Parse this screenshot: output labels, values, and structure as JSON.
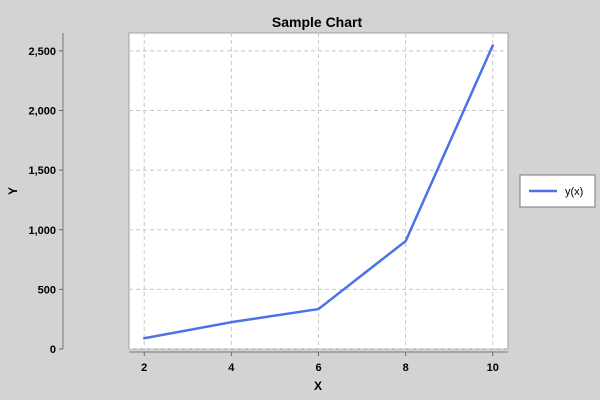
{
  "chart_data": {
    "type": "line",
    "title": "Sample Chart",
    "xlabel": "X",
    "ylabel": "Y",
    "x": [
      2,
      4,
      6,
      8,
      10
    ],
    "series": [
      {
        "name": "y(x)",
        "color": "#4a72ea",
        "values": [
          90,
          225,
          335,
          905,
          2545
        ]
      }
    ],
    "xlim": [
      1.65,
      10.35
    ],
    "ylim": [
      0,
      2650
    ],
    "xticks": [
      2,
      4,
      6,
      8,
      10
    ],
    "xtick_labels": [
      "2",
      "4",
      "6",
      "8",
      "10"
    ],
    "yticks": [
      0,
      500,
      1000,
      1500,
      2000,
      2500
    ],
    "ytick_labels": [
      "0",
      "500",
      "1,000",
      "1,500",
      "2,000",
      "2,500"
    ],
    "grid": true,
    "legend_position": "right",
    "background_color": "#d3d3d3",
    "plot_background_color": "#ffffff",
    "grid_color": "#c8c8c8"
  }
}
